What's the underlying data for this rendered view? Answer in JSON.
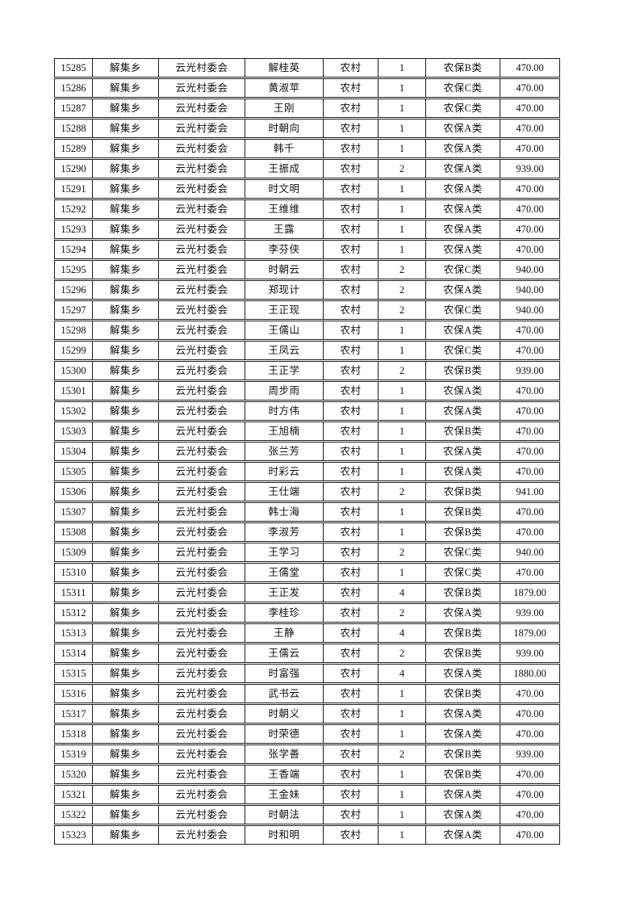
{
  "page": {
    "background_color": "#ffffff",
    "text_color": "#111111",
    "border_color": "#1f1f1f"
  },
  "table": {
    "columns": [
      "id",
      "township",
      "village",
      "name",
      "residence",
      "count",
      "category",
      "amount"
    ],
    "rows": [
      [
        "15285",
        "解集乡",
        "云光村委会",
        "解桂英",
        "农村",
        "1",
        "农保B类",
        "470.00"
      ],
      [
        "15286",
        "解集乡",
        "云光村委会",
        "黄淑苹",
        "农村",
        "1",
        "农保C类",
        "470.00"
      ],
      [
        "15287",
        "解集乡",
        "云光村委会",
        "王刚",
        "农村",
        "1",
        "农保C类",
        "470.00"
      ],
      [
        "15288",
        "解集乡",
        "云光村委会",
        "时朝向",
        "农村",
        "1",
        "农保A类",
        "470.00"
      ],
      [
        "15289",
        "解集乡",
        "云光村委会",
        "韩千",
        "农村",
        "1",
        "农保A类",
        "470.00"
      ],
      [
        "15290",
        "解集乡",
        "云光村委会",
        "王振成",
        "农村",
        "2",
        "农保A类",
        "939.00"
      ],
      [
        "15291",
        "解集乡",
        "云光村委会",
        "时文明",
        "农村",
        "1",
        "农保A类",
        "470.00"
      ],
      [
        "15292",
        "解集乡",
        "云光村委会",
        "王维维",
        "农村",
        "1",
        "农保A类",
        "470.00"
      ],
      [
        "15293",
        "解集乡",
        "云光村委会",
        "王露",
        "农村",
        "1",
        "农保A类",
        "470.00"
      ],
      [
        "15294",
        "解集乡",
        "云光村委会",
        "李芬侠",
        "农村",
        "1",
        "农保A类",
        "470.00"
      ],
      [
        "15295",
        "解集乡",
        "云光村委会",
        "时朝云",
        "农村",
        "2",
        "农保C类",
        "940.00"
      ],
      [
        "15296",
        "解集乡",
        "云光村委会",
        "郑现计",
        "农村",
        "2",
        "农保A类",
        "940.00"
      ],
      [
        "15297",
        "解集乡",
        "云光村委会",
        "王正现",
        "农村",
        "2",
        "农保C类",
        "940.00"
      ],
      [
        "15298",
        "解集乡",
        "云光村委会",
        "王儒山",
        "农村",
        "1",
        "农保A类",
        "470.00"
      ],
      [
        "15299",
        "解集乡",
        "云光村委会",
        "王凤云",
        "农村",
        "1",
        "农保C类",
        "470.00"
      ],
      [
        "15300",
        "解集乡",
        "云光村委会",
        "王正学",
        "农村",
        "2",
        "农保B类",
        "939.00"
      ],
      [
        "15301",
        "解集乡",
        "云光村委会",
        "周步雨",
        "农村",
        "1",
        "农保A类",
        "470.00"
      ],
      [
        "15302",
        "解集乡",
        "云光村委会",
        "时方伟",
        "农村",
        "1",
        "农保A类",
        "470.00"
      ],
      [
        "15303",
        "解集乡",
        "云光村委会",
        "王旭楠",
        "农村",
        "1",
        "农保B类",
        "470.00"
      ],
      [
        "15304",
        "解集乡",
        "云光村委会",
        "张兰芳",
        "农村",
        "1",
        "农保A类",
        "470.00"
      ],
      [
        "15305",
        "解集乡",
        "云光村委会",
        "时彩云",
        "农村",
        "1",
        "农保A类",
        "470.00"
      ],
      [
        "15306",
        "解集乡",
        "云光村委会",
        "王仕端",
        "农村",
        "2",
        "农保B类",
        "941.00"
      ],
      [
        "15307",
        "解集乡",
        "云光村委会",
        "韩士海",
        "农村",
        "1",
        "农保B类",
        "470.00"
      ],
      [
        "15308",
        "解集乡",
        "云光村委会",
        "李淑芳",
        "农村",
        "1",
        "农保B类",
        "470.00"
      ],
      [
        "15309",
        "解集乡",
        "云光村委会",
        "王学习",
        "农村",
        "2",
        "农保C类",
        "940.00"
      ],
      [
        "15310",
        "解集乡",
        "云光村委会",
        "王儒堂",
        "农村",
        "1",
        "农保C类",
        "470.00"
      ],
      [
        "15311",
        "解集乡",
        "云光村委会",
        "王正发",
        "农村",
        "4",
        "农保B类",
        "1879.00"
      ],
      [
        "15312",
        "解集乡",
        "云光村委会",
        "李桂珍",
        "农村",
        "2",
        "农保A类",
        "939.00"
      ],
      [
        "15313",
        "解集乡",
        "云光村委会",
        "王静",
        "农村",
        "4",
        "农保B类",
        "1879.00"
      ],
      [
        "15314",
        "解集乡",
        "云光村委会",
        "王儒云",
        "农村",
        "2",
        "农保B类",
        "939.00"
      ],
      [
        "15315",
        "解集乡",
        "云光村委会",
        "时富强",
        "农村",
        "4",
        "农保A类",
        "1880.00"
      ],
      [
        "15316",
        "解集乡",
        "云光村委会",
        "武书云",
        "农村",
        "1",
        "农保B类",
        "470.00"
      ],
      [
        "15317",
        "解集乡",
        "云光村委会",
        "时朝义",
        "农村",
        "1",
        "农保A类",
        "470.00"
      ],
      [
        "15318",
        "解集乡",
        "云光村委会",
        "时荣德",
        "农村",
        "1",
        "农保A类",
        "470.00"
      ],
      [
        "15319",
        "解集乡",
        "云光村委会",
        "张学善",
        "农村",
        "2",
        "农保B类",
        "939.00"
      ],
      [
        "15320",
        "解集乡",
        "云光村委会",
        "王香端",
        "农村",
        "1",
        "农保B类",
        "470.00"
      ],
      [
        "15321",
        "解集乡",
        "云光村委会",
        "王金妹",
        "农村",
        "1",
        "农保A类",
        "470.00"
      ],
      [
        "15322",
        "解集乡",
        "云光村委会",
        "时朝法",
        "农村",
        "1",
        "农保A类",
        "470.00"
      ],
      [
        "15323",
        "解集乡",
        "云光村委会",
        "时和明",
        "农村",
        "1",
        "农保A类",
        "470.00"
      ]
    ]
  }
}
